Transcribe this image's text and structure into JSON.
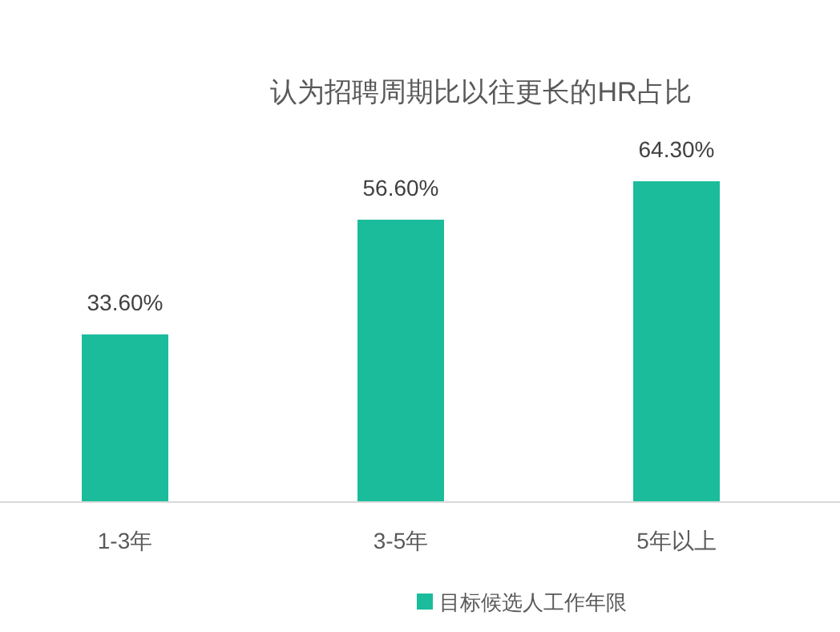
{
  "chart_data": {
    "type": "bar",
    "title": "认为招聘周期比以往更长的HR占比",
    "categories": [
      "1-3年",
      "3-5年",
      "5年以上"
    ],
    "series": [
      {
        "name": "目标候选人工作年限",
        "color": "#1bbc9b",
        "values": [
          33.6,
          56.6,
          64.3
        ],
        "value_labels": [
          "33.60%",
          "56.60%",
          "64.30%"
        ]
      }
    ],
    "legend": "bottom"
  }
}
